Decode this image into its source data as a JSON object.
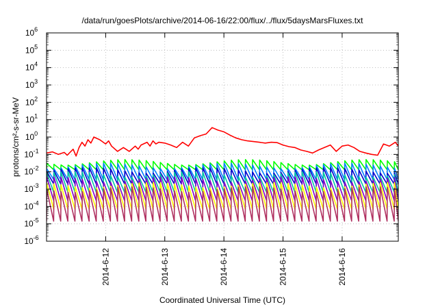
{
  "chart_data": {
    "type": "line",
    "title": "/data/run/goesPlots/archive/2014-06-16/22:00/flux/../flux/5daysMarsFluxes.txt",
    "xlabel": "Coordinated Universal Time (UTC)",
    "ylabel": "protons/cm²-s-sr-MeV",
    "yscale": "log",
    "ylim": [
      1e-06,
      1000000.0
    ],
    "xlim": [
      11.0,
      16.95
    ],
    "x_unit": "day of June 2014",
    "grid": true,
    "x_ticks": [
      {
        "x": 12,
        "label": "2014-6-12"
      },
      {
        "x": 13,
        "label": "2014-6-13"
      },
      {
        "x": 14,
        "label": "2014-6-14"
      },
      {
        "x": 15,
        "label": "2014-6-15"
      },
      {
        "x": 16,
        "label": "2014-6-16"
      }
    ],
    "y_ticks": [
      {
        "base": "10",
        "exp": "-6"
      },
      {
        "base": "10",
        "exp": "-5"
      },
      {
        "base": "10",
        "exp": "-4"
      },
      {
        "base": "10",
        "exp": "-3"
      },
      {
        "base": "10",
        "exp": "-2"
      },
      {
        "base": "10",
        "exp": "-1"
      },
      {
        "base": "10",
        "exp": "0"
      },
      {
        "base": "10",
        "exp": "1"
      },
      {
        "base": "10",
        "exp": "2"
      },
      {
        "base": "10",
        "exp": "3"
      },
      {
        "base": "10",
        "exp": "4"
      },
      {
        "base": "10",
        "exp": "5"
      },
      {
        "base": "10",
        "exp": "6"
      }
    ],
    "series": [
      {
        "color": "#ff0000",
        "x": [
          11.0,
          11.1,
          11.2,
          11.3,
          11.35,
          11.45,
          11.5,
          11.55,
          11.6,
          11.65,
          11.7,
          11.75,
          11.8,
          11.9,
          12.0,
          12.05,
          12.1,
          12.2,
          12.3,
          12.4,
          12.5,
          12.55,
          12.6,
          12.7,
          12.75,
          12.8,
          12.85,
          12.9,
          13.0,
          13.1,
          13.2,
          13.3,
          13.4,
          13.5,
          13.6,
          13.7,
          13.8,
          13.9,
          14.0,
          14.1,
          14.2,
          14.3,
          14.4,
          14.5,
          14.6,
          14.7,
          14.8,
          14.9,
          15.0,
          15.1,
          15.2,
          15.3,
          15.4,
          15.5,
          15.6,
          15.7,
          15.8,
          15.9,
          16.0,
          16.1,
          16.2,
          16.3,
          16.4,
          16.5,
          16.6,
          16.7,
          16.8,
          16.9,
          16.95
        ],
        "y": [
          0.12,
          0.14,
          0.1,
          0.13,
          0.09,
          0.2,
          0.08,
          0.25,
          0.5,
          0.3,
          0.7,
          0.45,
          1.0,
          0.7,
          0.4,
          0.6,
          0.3,
          0.15,
          0.25,
          0.15,
          0.3,
          0.2,
          0.35,
          0.5,
          0.3,
          0.6,
          0.4,
          0.5,
          0.45,
          0.35,
          0.25,
          0.5,
          0.3,
          0.9,
          1.2,
          1.5,
          3.5,
          2.5,
          2.0,
          1.3,
          0.9,
          0.7,
          0.6,
          0.55,
          0.5,
          0.45,
          0.5,
          0.48,
          0.35,
          0.28,
          0.25,
          0.18,
          0.15,
          0.12,
          0.18,
          0.25,
          0.35,
          0.15,
          0.3,
          0.35,
          0.25,
          0.15,
          0.12,
          0.1,
          0.09,
          0.4,
          0.3,
          0.5,
          0.3
        ]
      },
      {
        "color": "#00ff00",
        "base": 0.022,
        "amp": 2.0,
        "start": 11.0,
        "period": 0.12
      },
      {
        "color": "#0080ff",
        "base": 0.009,
        "amp": 3.0,
        "start": 11.0,
        "period": 0.12
      },
      {
        "color": "#0000cc",
        "base": 0.005,
        "amp": 3.0,
        "start": 11.0,
        "period": 0.12
      },
      {
        "color": "#00c8a0",
        "base": 0.0022,
        "amp": 4.0,
        "start": 11.0,
        "period": 0.12
      },
      {
        "color": "#8000c8",
        "base": 0.0009,
        "amp": 5.0,
        "start": 11.0,
        "period": 0.12
      },
      {
        "color": "#ffff00",
        "base": 0.00035,
        "amp": 6.0,
        "start": 11.0,
        "period": 0.12
      },
      {
        "color": "#b03060",
        "base": 0.00012,
        "amp": 10.0,
        "start": 11.0,
        "period": 0.12
      }
    ]
  }
}
